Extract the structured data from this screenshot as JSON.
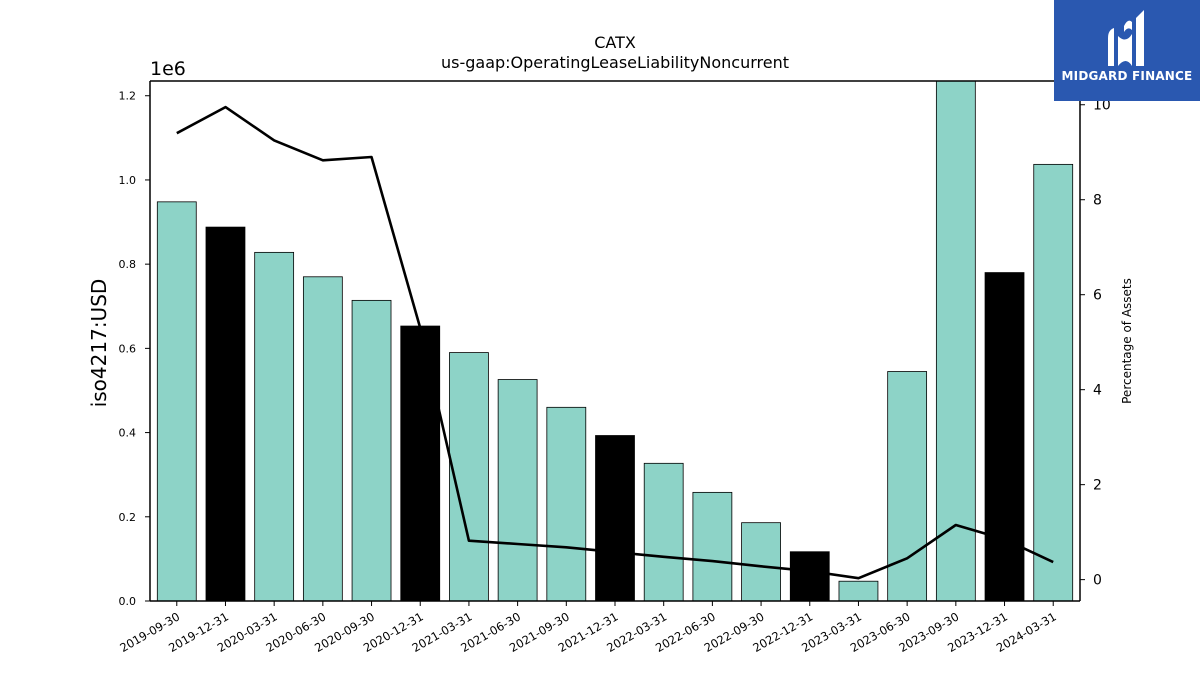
{
  "chart_data": {
    "type": "bar",
    "title": "CATX",
    "subtitle": "us-gaap:OperatingLeaseLiabilityNoncurrent",
    "ylabel": "iso4217:USD",
    "y_offset_label": "1e6",
    "y2label": "Percentage of Assets",
    "categories": [
      "2019-09-30",
      "2019-12-31",
      "2020-03-31",
      "2020-06-30",
      "2020-09-30",
      "2020-12-31",
      "2021-03-31",
      "2021-06-30",
      "2021-09-30",
      "2021-12-31",
      "2022-03-31",
      "2022-06-30",
      "2022-09-30",
      "2022-12-31",
      "2023-03-31",
      "2023-06-30",
      "2023-09-30",
      "2023-12-31",
      "2024-03-31"
    ],
    "series": [
      {
        "type": "bar",
        "values": [
          948000,
          888000,
          828000,
          770000,
          714000,
          653000,
          590000,
          526000,
          460000,
          393000,
          327000,
          258000,
          186000,
          117000,
          47000,
          545000,
          1240000,
          780000,
          1037000
        ],
        "highlight_color": "#000000",
        "highlight_categories": [
          "2019-12-31",
          "2020-12-31",
          "2021-12-31",
          "2022-12-31",
          "2023-12-31"
        ],
        "color": "#8dd3c7"
      },
      {
        "type": "line",
        "axis": "right",
        "values": [
          9.4,
          9.95,
          9.25,
          8.83,
          8.9,
          5.3,
          0.82,
          0.75,
          0.68,
          0.58,
          0.48,
          0.39,
          0.28,
          0.18,
          0.03,
          0.45,
          1.15,
          0.85,
          0.37
        ],
        "color": "#000000"
      }
    ],
    "ylim": [
      0,
      1235000
    ],
    "yticks": [
      0,
      200000,
      400000,
      600000,
      800000,
      1000000,
      1200000
    ],
    "ytick_labels": [
      "0.0",
      "0.2",
      "0.4",
      "0.6",
      "0.8",
      "1.0",
      "1.2"
    ],
    "y2lim": [
      -0.45,
      10.5
    ],
    "y2ticks": [
      0,
      2,
      4,
      6,
      8,
      10
    ],
    "y2tick_labels": [
      "0",
      "2",
      "4",
      "6",
      "8",
      "10"
    ],
    "grid": false,
    "legend": "none"
  },
  "logo": {
    "text": "MIDGARD FINANCE",
    "color": "#2a58b0"
  }
}
